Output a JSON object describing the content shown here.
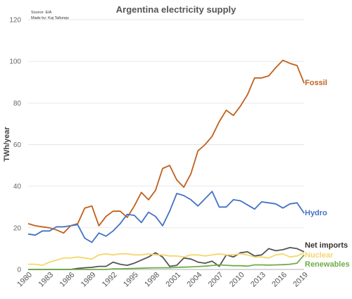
{
  "chart_data": {
    "type": "line",
    "title": "Argentina electricity supply",
    "source_line1": "Source: EIA",
    "source_line2": "Made by: Kaj Tallungs",
    "xlabel": "",
    "ylabel": "TWh/year",
    "ylim": [
      0,
      120
    ],
    "yticks": [
      0,
      20,
      40,
      60,
      80,
      100,
      120
    ],
    "xlim": [
      1980,
      2019
    ],
    "xticks": [
      1980,
      1983,
      1986,
      1989,
      1992,
      1995,
      1998,
      2001,
      2004,
      2007,
      2010,
      2013,
      2016,
      2019
    ],
    "grid": "horizontal",
    "x": [
      1980,
      1981,
      1982,
      1983,
      1984,
      1985,
      1986,
      1987,
      1988,
      1989,
      1990,
      1991,
      1992,
      1993,
      1994,
      1995,
      1996,
      1997,
      1998,
      1999,
      2000,
      2001,
      2002,
      2003,
      2004,
      2005,
      2006,
      2007,
      2008,
      2009,
      2010,
      2011,
      2012,
      2013,
      2014,
      2015,
      2016,
      2017,
      2018,
      2019
    ],
    "series": [
      {
        "name": "Fossil",
        "color": "#c0601c",
        "values": [
          22,
          21,
          20.5,
          20,
          19,
          17.5,
          21,
          22,
          29.5,
          30.5,
          21,
          25.5,
          28,
          28,
          25,
          30.5,
          37,
          33.5,
          38,
          48.5,
          50,
          43,
          39.5,
          46,
          57,
          60,
          64,
          71,
          76.5,
          74,
          78.5,
          84,
          92,
          92,
          93,
          97,
          100.5,
          99,
          98,
          89.5
        ]
      },
      {
        "name": "Hydro",
        "color": "#4472c4",
        "values": [
          17,
          16.5,
          18.5,
          18.5,
          20.5,
          20.5,
          21,
          21.5,
          15,
          13,
          17.5,
          16,
          18.5,
          22,
          26.5,
          26,
          22.5,
          27.5,
          25.5,
          21,
          28,
          36.5,
          35.5,
          33.5,
          30.5,
          34,
          37.5,
          30,
          30,
          33.5,
          33,
          31,
          29,
          32.5,
          32,
          31.5,
          29.5,
          31.5,
          32,
          27
        ]
      },
      {
        "name": "Net imports",
        "color": "#555555",
        "values": [
          0,
          0,
          0,
          0,
          0,
          0,
          0,
          0.5,
          0.8,
          1,
          1.5,
          1.5,
          3.5,
          2.5,
          2,
          3,
          4.5,
          6,
          8,
          6,
          1.5,
          2,
          5.5,
          5,
          3.5,
          3,
          4,
          1.5,
          7,
          6,
          8,
          8.5,
          6.5,
          7,
          10,
          9,
          9.5,
          10.5,
          10,
          8.5
        ]
      },
      {
        "name": "Nuclear",
        "color": "#f5d76e",
        "values": [
          2.5,
          2.5,
          2,
          3.5,
          4.5,
          5.5,
          5.5,
          6,
          5.5,
          5,
          7,
          7.5,
          7,
          7.5,
          7.5,
          7,
          7,
          7.5,
          7,
          7,
          6.5,
          6.5,
          6,
          7,
          7,
          6.5,
          7,
          7.5,
          7,
          7,
          7.5,
          7,
          6,
          6,
          5.5,
          7,
          7.5,
          6,
          6.5,
          8
        ]
      },
      {
        "name": "Renewables",
        "color": "#70ad47",
        "values": [
          0,
          0,
          0,
          0,
          0,
          0,
          0,
          0,
          0,
          0,
          0,
          0,
          0.3,
          0.3,
          0.4,
          0.5,
          0.6,
          0.7,
          0.8,
          0.8,
          0.8,
          1,
          1.1,
          1.2,
          1.4,
          1.6,
          1.9,
          2.2,
          2,
          1.8,
          1.8,
          1.6,
          2.2,
          2.2,
          2.1,
          2.2,
          2.3,
          2.5,
          3,
          7
        ]
      }
    ]
  }
}
